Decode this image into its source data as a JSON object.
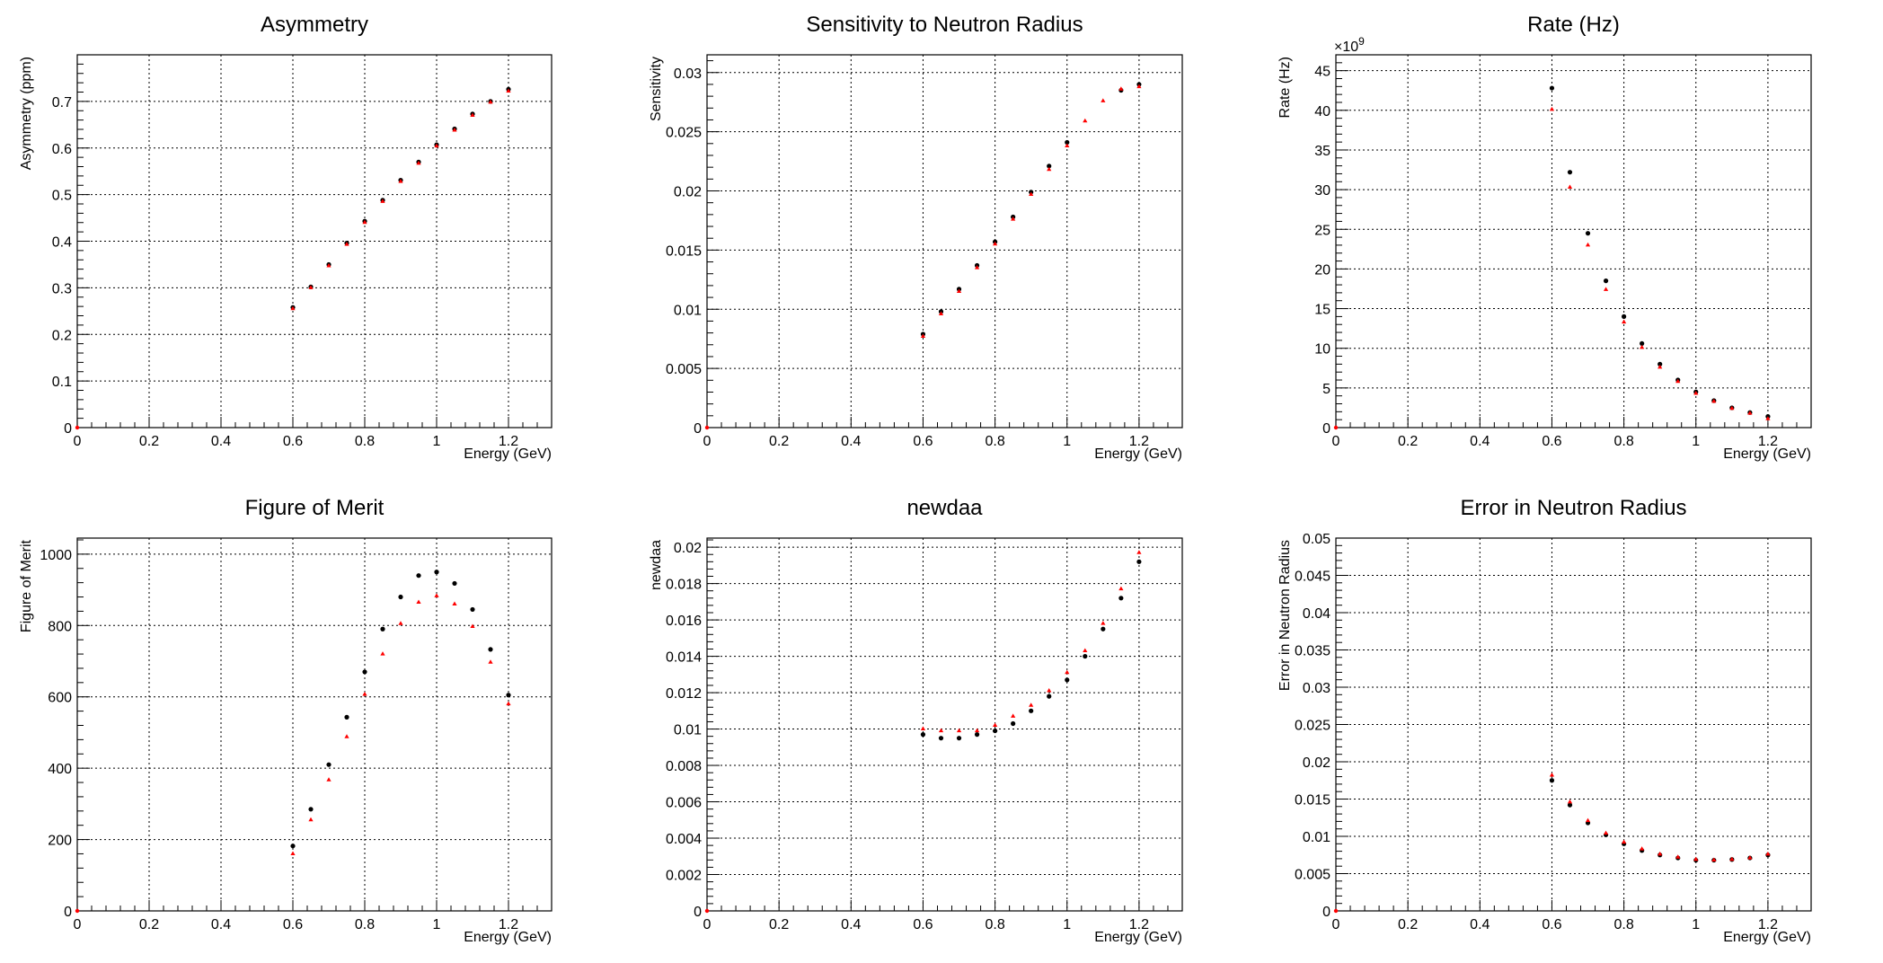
{
  "colors": {
    "series_black": "#000000",
    "series_red": "#ff0000",
    "grid": "#000000"
  },
  "chart_data": [
    {
      "type": "scatter",
      "title": "Asymmetry",
      "xlabel": "Energy (GeV)",
      "ylabel": "Asymmetry (ppm)",
      "xlim": [
        0,
        1.32
      ],
      "ylim": [
        0,
        0.8
      ],
      "xticks": [
        0,
        0.2,
        0.4,
        0.6,
        0.8,
        1,
        1.2
      ],
      "xtick_labels": [
        "0",
        "0.2",
        "0.4",
        "0.6",
        "0.8",
        "1",
        "1.2"
      ],
      "yticks": [
        0,
        0.1,
        0.2,
        0.3,
        0.4,
        0.5,
        0.6,
        0.7
      ],
      "ytick_labels": [
        "0",
        "0.1",
        "0.2",
        "0.3",
        "0.4",
        "0.5",
        "0.6",
        "0.7"
      ],
      "grid": true,
      "exponent_label": "",
      "x": [
        0.6,
        0.65,
        0.7,
        0.75,
        0.8,
        0.85,
        0.9,
        0.95,
        1.0,
        1.05,
        1.1,
        1.15,
        1.2
      ],
      "series": [
        {
          "color": "#000000",
          "values": [
            0.258,
            0.302,
            0.35,
            0.396,
            0.443,
            0.488,
            0.531,
            0.57,
            0.607,
            0.641,
            0.673,
            0.7,
            0.726
          ]
        },
        {
          "color": "#ff0000",
          "values": [
            0.255,
            0.3,
            0.347,
            0.393,
            0.44,
            0.485,
            0.528,
            0.567,
            0.604,
            0.638,
            0.67,
            0.698,
            0.722
          ]
        }
      ]
    },
    {
      "type": "scatter",
      "title": "Sensitivity to Neutron Radius",
      "xlabel": "Energy (GeV)",
      "ylabel": "Sensitivity",
      "xlim": [
        0,
        1.32
      ],
      "ylim": [
        0,
        0.0315
      ],
      "xticks": [
        0,
        0.2,
        0.4,
        0.6,
        0.8,
        1,
        1.2
      ],
      "xtick_labels": [
        "0",
        "0.2",
        "0.4",
        "0.6",
        "0.8",
        "1",
        "1.2"
      ],
      "yticks": [
        0,
        0.005,
        0.01,
        0.015,
        0.02,
        0.025,
        0.03
      ],
      "ytick_labels": [
        "0",
        "0.005",
        "0.01",
        "0.015",
        "0.02",
        "0.025",
        "0.03"
      ],
      "grid": true,
      "exponent_label": "",
      "x": [
        0.6,
        0.65,
        0.7,
        0.75,
        0.8,
        0.85,
        0.9,
        0.95,
        1.0,
        1.05,
        1.1,
        1.15,
        1.2
      ],
      "series": [
        {
          "color": "#000000",
          "values": [
            0.0079,
            0.0098,
            0.0117,
            0.0137,
            0.0157,
            0.0178,
            0.0199,
            0.0221,
            0.0241,
            null,
            null,
            0.0285,
            0.029
          ]
        },
        {
          "color": "#ff0000",
          "values": [
            0.0077,
            0.0096,
            0.0115,
            0.0135,
            0.0155,
            0.0176,
            0.0197,
            0.0218,
            0.0238,
            0.0259,
            0.0276,
            0.0286,
            0.0288
          ]
        }
      ]
    },
    {
      "type": "scatter",
      "title": "Rate (Hz)",
      "xlabel": "Energy (GeV)",
      "ylabel": "Rate (Hz)",
      "xlim": [
        0,
        1.32
      ],
      "ylim": [
        0,
        47
      ],
      "xticks": [
        0,
        0.2,
        0.4,
        0.6,
        0.8,
        1,
        1.2
      ],
      "xtick_labels": [
        "0",
        "0.2",
        "0.4",
        "0.6",
        "0.8",
        "1",
        "1.2"
      ],
      "yticks": [
        0,
        5,
        10,
        15,
        20,
        25,
        30,
        35,
        40,
        45
      ],
      "ytick_labels": [
        "0",
        "5",
        "10",
        "15",
        "20",
        "25",
        "30",
        "35",
        "40",
        "45"
      ],
      "grid": true,
      "exponent_label": "×10",
      "exponent_power": "9",
      "x": [
        0.6,
        0.65,
        0.7,
        0.75,
        0.8,
        0.85,
        0.9,
        0.95,
        1.0,
        1.05,
        1.1,
        1.15,
        1.2
      ],
      "series": [
        {
          "color": "#000000",
          "values": [
            42.8,
            32.2,
            24.5,
            18.5,
            14.0,
            10.6,
            8.0,
            6.0,
            4.5,
            3.4,
            2.5,
            1.9,
            1.4
          ]
        },
        {
          "color": "#ff0000",
          "values": [
            40.1,
            30.3,
            23.0,
            17.4,
            13.3,
            10.1,
            7.6,
            5.8,
            4.3,
            3.3,
            2.4,
            1.8,
            1.1
          ]
        }
      ]
    },
    {
      "type": "scatter",
      "title": "Figure of Merit",
      "xlabel": "Energy (GeV)",
      "ylabel": "Figure of Merit",
      "xlim": [
        0,
        1.32
      ],
      "ylim": [
        0,
        1045
      ],
      "xticks": [
        0,
        0.2,
        0.4,
        0.6,
        0.8,
        1,
        1.2
      ],
      "xtick_labels": [
        "0",
        "0.2",
        "0.4",
        "0.6",
        "0.8",
        "1",
        "1.2"
      ],
      "yticks": [
        0,
        200,
        400,
        600,
        800,
        1000
      ],
      "ytick_labels": [
        "0",
        "200",
        "400",
        "600",
        "800",
        "1000"
      ],
      "grid": true,
      "exponent_label": "",
      "x": [
        0.6,
        0.65,
        0.7,
        0.75,
        0.8,
        0.85,
        0.9,
        0.95,
        1.0,
        1.05,
        1.1,
        1.15,
        1.2
      ],
      "series": [
        {
          "color": "#000000",
          "values": [
            182,
            285,
            410,
            543,
            670,
            790,
            880,
            940,
            950,
            918,
            845,
            733,
            605
          ]
        },
        {
          "color": "#ff0000",
          "values": [
            160,
            255,
            367,
            488,
            607,
            720,
            805,
            865,
            883,
            860,
            797,
            697,
            580
          ]
        }
      ]
    },
    {
      "type": "scatter",
      "title": "newdaa",
      "xlabel": "Energy (GeV)",
      "ylabel": "newdaa",
      "xlim": [
        0,
        1.32
      ],
      "ylim": [
        0,
        0.0205
      ],
      "xticks": [
        0,
        0.2,
        0.4,
        0.6,
        0.8,
        1,
        1.2
      ],
      "xtick_labels": [
        "0",
        "0.2",
        "0.4",
        "0.6",
        "0.8",
        "1",
        "1.2"
      ],
      "yticks": [
        0,
        0.002,
        0.004,
        0.006,
        0.008,
        0.01,
        0.012,
        0.014,
        0.016,
        0.018,
        0.02
      ],
      "ytick_labels": [
        "0",
        "0.002",
        "0.004",
        "0.006",
        "0.008",
        "0.01",
        "0.012",
        "0.014",
        "0.016",
        "0.018",
        "0.02"
      ],
      "grid": true,
      "exponent_label": "",
      "x": [
        0.6,
        0.65,
        0.7,
        0.75,
        0.8,
        0.85,
        0.9,
        0.95,
        1.0,
        1.05,
        1.1,
        1.15,
        1.2
      ],
      "series": [
        {
          "color": "#000000",
          "values": [
            0.0097,
            0.0095,
            0.0095,
            0.0097,
            0.0099,
            0.0103,
            0.011,
            0.0118,
            0.0127,
            0.014,
            0.0155,
            0.0172,
            0.0192
          ]
        },
        {
          "color": "#ff0000",
          "values": [
            0.01,
            0.0099,
            0.0099,
            0.0099,
            0.0102,
            0.0107,
            0.0113,
            0.0121,
            0.0131,
            0.0143,
            0.0158,
            0.0177,
            0.0197
          ]
        }
      ]
    },
    {
      "type": "scatter",
      "title": "Error in Neutron Radius",
      "xlabel": "Energy (GeV)",
      "ylabel": "Error in Neutron Radius",
      "xlim": [
        0,
        1.32
      ],
      "ylim": [
        0,
        0.05
      ],
      "xticks": [
        0,
        0.2,
        0.4,
        0.6,
        0.8,
        1,
        1.2
      ],
      "xtick_labels": [
        "0",
        "0.2",
        "0.4",
        "0.6",
        "0.8",
        "1",
        "1.2"
      ],
      "yticks": [
        0,
        0.005,
        0.01,
        0.015,
        0.02,
        0.025,
        0.03,
        0.035,
        0.04,
        0.045,
        0.05
      ],
      "ytick_labels": [
        "0",
        "0.005",
        "0.01",
        "0.015",
        "0.02",
        "0.025",
        "0.03",
        "0.035",
        "0.04",
        "0.045",
        "0.05"
      ],
      "grid": true,
      "exponent_label": "",
      "x": [
        0.6,
        0.65,
        0.7,
        0.75,
        0.8,
        0.85,
        0.9,
        0.95,
        1.0,
        1.05,
        1.1,
        1.15,
        1.2
      ],
      "series": [
        {
          "color": "#000000",
          "values": [
            0.0175,
            0.0142,
            0.0118,
            0.0102,
            0.009,
            0.0081,
            0.0075,
            0.0071,
            0.0068,
            0.0068,
            0.0069,
            0.0071,
            0.0075
          ]
        },
        {
          "color": "#ff0000",
          "values": [
            0.0182,
            0.0146,
            0.0121,
            0.0104,
            0.0092,
            0.0083,
            0.0076,
            0.0072,
            0.0069,
            0.0068,
            0.0069,
            0.0071,
            0.0076
          ]
        }
      ]
    }
  ]
}
